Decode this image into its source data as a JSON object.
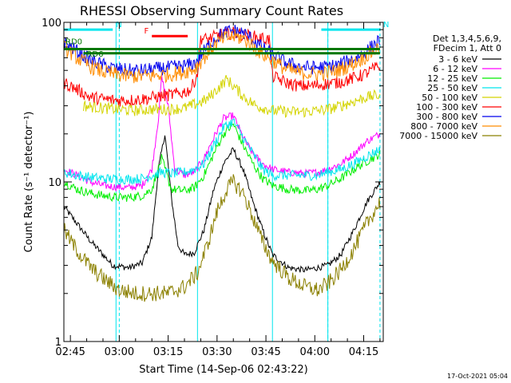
{
  "chart_data": {
    "type": "line",
    "title": "RHESSI Observing Summary Count Rates",
    "xlabel": "Start Time (14-Sep-06 02:43:22)",
    "ylabel": "Count Rate (s⁻¹ detector⁻¹)",
    "y_scale": "log",
    "xlim": [
      "02:43",
      "04:21"
    ],
    "ylim": [
      1,
      100
    ],
    "x_ticks": [
      "02:45",
      "03:00",
      "03:15",
      "03:30",
      "03:45",
      "04:00",
      "04:15"
    ],
    "y_ticks": [
      "1",
      "10",
      "100"
    ],
    "legend_placement": "right",
    "legend_header": [
      "Det 1,3,4,5,6,9,",
      "FDecim 1, Att 0"
    ],
    "timestamp": "17-Oct-2021 05:04",
    "flags": [
      {
        "label": "N",
        "color": "#00e5ee",
        "start": "02:43",
        "end": "02:58",
        "level": 90
      },
      {
        "label": "N",
        "color": "#00e5ee",
        "start": "04:02",
        "end": "04:20",
        "level": 90
      },
      {
        "label": "F",
        "color": "#ff0000",
        "start": "03:10",
        "end": "03:21",
        "level": 82
      },
      {
        "label": "RD0",
        "color": "#007700",
        "start": "02:43",
        "end": "04:20",
        "level": 68
      },
      {
        "label": "RD6",
        "color": "#007700",
        "start": "02:49",
        "end": "04:20",
        "level": 64
      }
    ],
    "eclipse_boundaries": [
      "02:43",
      "02:59",
      "03:24",
      "03:47",
      "04:04"
    ],
    "saa_lines": [
      "03:00",
      "04:04",
      "04:20"
    ],
    "series": [
      {
        "name": "3 - 6 keV",
        "color": "#000000",
        "points": [
          [
            "02:43",
            7
          ],
          [
            "02:47",
            5.5
          ],
          [
            "02:51",
            4.3
          ],
          [
            "02:55",
            3.5
          ],
          [
            "02:58",
            3
          ],
          [
            "03:03",
            2.9
          ],
          [
            "03:07",
            3.1
          ],
          [
            "03:10",
            4.5
          ],
          [
            "03:12",
            12
          ],
          [
            "03:14",
            20
          ],
          [
            "03:16",
            8
          ],
          [
            "03:18",
            4
          ],
          [
            "03:20",
            3.5
          ],
          [
            "03:23",
            3.6
          ],
          [
            "03:26",
            5
          ],
          [
            "03:29",
            9
          ],
          [
            "03:32",
            13
          ],
          [
            "03:35",
            16
          ],
          [
            "03:38",
            12
          ],
          [
            "03:41",
            7.5
          ],
          [
            "03:44",
            5
          ],
          [
            "03:47",
            3.5
          ],
          [
            "03:52",
            2.9
          ],
          [
            "03:57",
            2.8
          ],
          [
            "04:01",
            2.9
          ],
          [
            "04:04",
            3
          ],
          [
            "04:08",
            3.5
          ],
          [
            "04:12",
            5
          ],
          [
            "04:16",
            7.5
          ],
          [
            "04:20",
            10
          ]
        ]
      },
      {
        "name": "6 - 12 keV",
        "color": "#ff00ff",
        "points": [
          [
            "02:43",
            12
          ],
          [
            "02:47",
            11
          ],
          [
            "02:51",
            10
          ],
          [
            "02:55",
            9.5
          ],
          [
            "02:59",
            9.3
          ],
          [
            "03:03",
            9.2
          ],
          [
            "03:07",
            9.5
          ],
          [
            "03:10",
            12
          ],
          [
            "03:12",
            25
          ],
          [
            "03:13",
            45
          ],
          [
            "03:15",
            30
          ],
          [
            "03:17",
            12
          ],
          [
            "03:20",
            11
          ],
          [
            "03:23",
            11.5
          ],
          [
            "03:26",
            14
          ],
          [
            "03:29",
            19
          ],
          [
            "03:32",
            25
          ],
          [
            "03:35",
            26
          ],
          [
            "03:38",
            19
          ],
          [
            "03:41",
            15
          ],
          [
            "03:44",
            13
          ],
          [
            "03:47",
            12
          ],
          [
            "03:52",
            11.5
          ],
          [
            "03:57",
            11.3
          ],
          [
            "04:01",
            11.5
          ],
          [
            "04:04",
            12
          ],
          [
            "04:08",
            13
          ],
          [
            "04:12",
            15
          ],
          [
            "04:16",
            18
          ],
          [
            "04:20",
            20
          ]
        ]
      },
      {
        "name": "12 - 25 keV",
        "color": "#00ee00",
        "points": [
          [
            "02:43",
            10
          ],
          [
            "02:47",
            9
          ],
          [
            "02:51",
            8.5
          ],
          [
            "02:55",
            8.2
          ],
          [
            "02:59",
            8
          ],
          [
            "03:03",
            8
          ],
          [
            "03:07",
            8.2
          ],
          [
            "03:10",
            9
          ],
          [
            "03:13",
            14
          ],
          [
            "03:16",
            9
          ],
          [
            "03:20",
            8.8
          ],
          [
            "03:23",
            9.2
          ],
          [
            "03:26",
            11
          ],
          [
            "03:29",
            15
          ],
          [
            "03:32",
            20
          ],
          [
            "03:35",
            23
          ],
          [
            "03:38",
            17
          ],
          [
            "03:41",
            13
          ],
          [
            "03:44",
            10.5
          ],
          [
            "03:47",
            9.5
          ],
          [
            "03:52",
            9
          ],
          [
            "03:57",
            8.8
          ],
          [
            "04:01",
            9
          ],
          [
            "04:04",
            9.5
          ],
          [
            "04:08",
            10.5
          ],
          [
            "04:12",
            12
          ],
          [
            "04:16",
            13.5
          ],
          [
            "04:20",
            15
          ]
        ]
      },
      {
        "name": "25 - 50 keV",
        "color": "#00e5ee",
        "points": [
          [
            "02:43",
            11.5
          ],
          [
            "02:47",
            11
          ],
          [
            "02:51",
            10.7
          ],
          [
            "02:55",
            10.5
          ],
          [
            "02:59",
            10.4
          ],
          [
            "03:03",
            10.4
          ],
          [
            "03:07",
            10.5
          ],
          [
            "03:10",
            11
          ],
          [
            "03:13",
            11.5
          ],
          [
            "03:16",
            11.3
          ],
          [
            "03:20",
            11.5
          ],
          [
            "03:23",
            12
          ],
          [
            "03:26",
            13
          ],
          [
            "03:29",
            17
          ],
          [
            "03:32",
            22
          ],
          [
            "03:35",
            24
          ],
          [
            "03:38",
            19
          ],
          [
            "03:41",
            15
          ],
          [
            "03:44",
            12
          ],
          [
            "03:47",
            11
          ],
          [
            "03:52",
            11
          ],
          [
            "03:57",
            11
          ],
          [
            "04:01",
            11
          ],
          [
            "04:04",
            11.5
          ],
          [
            "04:08",
            12
          ],
          [
            "04:12",
            13
          ],
          [
            "04:16",
            14.5
          ],
          [
            "04:20",
            16
          ]
        ]
      },
      {
        "name": "50 - 100 keV",
        "color": "#d4d400",
        "points": [
          [
            "02:49",
            30
          ],
          [
            "02:55",
            29
          ],
          [
            "03:00",
            28.5
          ],
          [
            "03:05",
            28
          ],
          [
            "03:10",
            28.5
          ],
          [
            "03:15",
            28.5
          ],
          [
            "03:20",
            29
          ],
          [
            "03:24",
            31
          ],
          [
            "03:27",
            33
          ],
          [
            "03:30",
            38
          ],
          [
            "03:33",
            44
          ],
          [
            "03:36",
            38
          ],
          [
            "03:39",
            33
          ],
          [
            "03:42",
            30
          ],
          [
            "03:47",
            28
          ],
          [
            "03:52",
            27.5
          ],
          [
            "03:57",
            27.5
          ],
          [
            "04:01",
            28
          ],
          [
            "04:04",
            28.5
          ],
          [
            "04:08",
            30
          ],
          [
            "04:12",
            32
          ],
          [
            "04:16",
            34
          ],
          [
            "04:20",
            35
          ]
        ]
      },
      {
        "name": "100 - 300 keV",
        "color": "#ff0000",
        "points": [
          [
            "02:43",
            42
          ],
          [
            "02:47",
            38
          ],
          [
            "02:49",
            36
          ],
          [
            "02:51",
            34
          ],
          [
            "02:55",
            33
          ],
          [
            "02:59",
            32.5
          ],
          [
            "03:03",
            32.5
          ],
          [
            "03:07",
            33
          ],
          [
            "03:11",
            34
          ],
          [
            "03:15",
            35
          ],
          [
            "03:19",
            36
          ],
          [
            "03:22",
            38
          ],
          [
            "03:24",
            48
          ],
          [
            "03:25",
            80
          ],
          [
            "03:27",
            78
          ],
          [
            "03:31",
            84
          ],
          [
            "03:35",
            86
          ],
          [
            "03:39",
            83
          ],
          [
            "03:43",
            80
          ],
          [
            "03:46",
            78
          ],
          [
            "03:47",
            46
          ],
          [
            "03:51",
            42
          ],
          [
            "03:55",
            40
          ],
          [
            "03:59",
            40
          ],
          [
            "04:03",
            41
          ],
          [
            "04:07",
            42
          ],
          [
            "04:11",
            44
          ],
          [
            "04:15",
            47
          ],
          [
            "04:18",
            51
          ],
          [
            "04:20",
            53
          ]
        ]
      },
      {
        "name": "300 - 800 keV",
        "color": "#0000ee",
        "points": [
          [
            "02:43",
            75
          ],
          [
            "02:47",
            66
          ],
          [
            "02:51",
            58
          ],
          [
            "02:55",
            54
          ],
          [
            "02:59",
            51
          ],
          [
            "03:03",
            50
          ],
          [
            "03:07",
            50
          ],
          [
            "03:11",
            51
          ],
          [
            "03:15",
            52
          ],
          [
            "03:19",
            53
          ],
          [
            "03:23",
            55
          ],
          [
            "03:26",
            66
          ],
          [
            "03:29",
            78
          ],
          [
            "03:32",
            86
          ],
          [
            "03:35",
            89
          ],
          [
            "03:38",
            86
          ],
          [
            "03:41",
            78
          ],
          [
            "03:44",
            69
          ],
          [
            "03:47",
            63
          ],
          [
            "03:51",
            56
          ],
          [
            "03:55",
            53
          ],
          [
            "03:59",
            52
          ],
          [
            "04:03",
            52.5
          ],
          [
            "04:07",
            54
          ],
          [
            "04:11",
            58
          ],
          [
            "04:15",
            64
          ],
          [
            "04:18",
            72
          ],
          [
            "04:20",
            78
          ]
        ]
      },
      {
        "name": "800 - 7000 keV",
        "color": "#ff8c00",
        "points": [
          [
            "02:43",
            70
          ],
          [
            "02:47",
            60
          ],
          [
            "02:51",
            53
          ],
          [
            "02:55",
            49
          ],
          [
            "02:59",
            47
          ],
          [
            "03:03",
            46
          ],
          [
            "03:07",
            46
          ],
          [
            "03:11",
            46.5
          ],
          [
            "03:15",
            47
          ],
          [
            "03:19",
            48.5
          ],
          [
            "03:23",
            51
          ],
          [
            "03:26",
            60
          ],
          [
            "03:29",
            71
          ],
          [
            "03:32",
            79
          ],
          [
            "03:35",
            82
          ],
          [
            "03:38",
            79
          ],
          [
            "03:41",
            71
          ],
          [
            "03:44",
            63
          ],
          [
            "03:47",
            58
          ],
          [
            "03:51",
            51
          ],
          [
            "03:55",
            48.5
          ],
          [
            "03:59",
            47.5
          ],
          [
            "04:03",
            48
          ],
          [
            "04:07",
            50
          ],
          [
            "04:11",
            54
          ],
          [
            "04:15",
            60
          ],
          [
            "04:18",
            66
          ],
          [
            "04:20",
            70
          ]
        ]
      },
      {
        "name": "7000 - 15000 keV",
        "color": "#8b8000",
        "points": [
          [
            "02:43",
            5
          ],
          [
            "02:46",
            4
          ],
          [
            "02:49",
            3.3
          ],
          [
            "02:52",
            2.8
          ],
          [
            "02:56",
            2.4
          ],
          [
            "03:00",
            2.1
          ],
          [
            "03:05",
            2
          ],
          [
            "03:10",
            2
          ],
          [
            "03:15",
            2
          ],
          [
            "03:20",
            2.2
          ],
          [
            "03:24",
            2.7
          ],
          [
            "03:27",
            4
          ],
          [
            "03:30",
            6.5
          ],
          [
            "03:33",
            9
          ],
          [
            "03:35",
            10
          ],
          [
            "03:38",
            8.5
          ],
          [
            "03:41",
            6
          ],
          [
            "03:44",
            4.2
          ],
          [
            "03:47",
            3.2
          ],
          [
            "03:52",
            2.5
          ],
          [
            "03:57",
            2.2
          ],
          [
            "04:01",
            2.1
          ],
          [
            "04:04",
            2.3
          ],
          [
            "04:08",
            2.8
          ],
          [
            "04:12",
            3.8
          ],
          [
            "04:16",
            5.5
          ],
          [
            "04:20",
            7.5
          ]
        ]
      }
    ]
  }
}
